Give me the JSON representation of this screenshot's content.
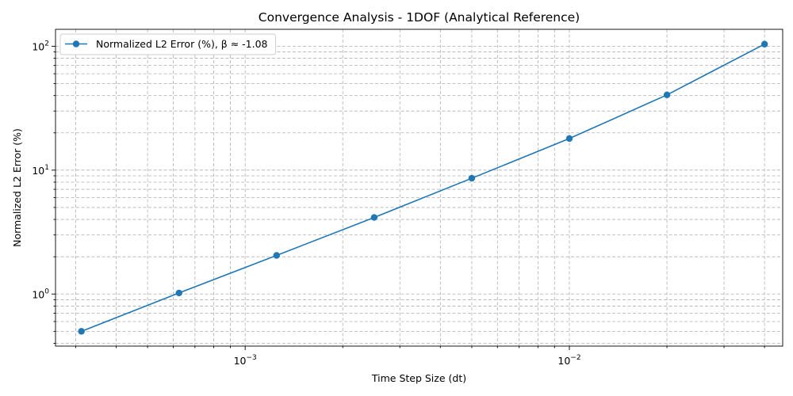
{
  "chart_data": {
    "type": "line",
    "title": "Convergence Analysis - 1DOF (Analytical Reference)",
    "xlabel": "Time Step Size (dt)",
    "ylabel": "Normalized L2 Error (%)",
    "xscale": "log",
    "yscale": "log",
    "xlim": [
      0.00026,
      0.0455
    ],
    "ylim": [
      0.38,
      137
    ],
    "x_major_ticks": [
      {
        "value": 0.001,
        "base": "10",
        "exp": "−3"
      },
      {
        "value": 0.01,
        "base": "10",
        "exp": "−2"
      }
    ],
    "y_major_ticks": [
      {
        "value": 1,
        "base": "10",
        "exp": "0"
      },
      {
        "value": 10,
        "base": "10",
        "exp": "1"
      },
      {
        "value": 100,
        "base": "10",
        "exp": "2"
      }
    ],
    "grid": true,
    "legend_position": "top-left",
    "colors": {
      "series": "#1f77b4",
      "grid": "#b0b0b0"
    },
    "series": [
      {
        "name": "Normalized L2 Error (%), β ≈ -1.08",
        "x": [
          0.0003125,
          0.000625,
          0.00125,
          0.0025,
          0.005,
          0.01,
          0.02,
          0.04
        ],
        "y": [
          0.5,
          1.02,
          2.05,
          4.15,
          8.6,
          18.0,
          40.5,
          104.0
        ]
      }
    ]
  }
}
